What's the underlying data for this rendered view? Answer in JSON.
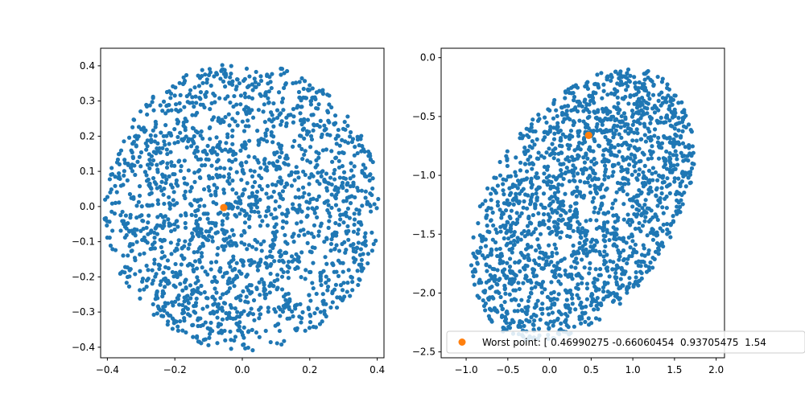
{
  "chart_data": [
    {
      "type": "scatter",
      "xlim": [
        -0.42,
        0.42
      ],
      "ylim": [
        -0.43,
        0.45
      ],
      "x_ticks": [
        -0.4,
        -0.2,
        0.0,
        0.2,
        0.4
      ],
      "x_tick_labels": [
        "−0.4",
        "−0.2",
        "0.0",
        "0.2",
        "0.4"
      ],
      "y_ticks": [
        -0.4,
        -0.3,
        -0.2,
        -0.1,
        0.0,
        0.1,
        0.2,
        0.3,
        0.4
      ],
      "y_tick_labels": [
        "−0.4",
        "−0.3",
        "−0.2",
        "−0.1",
        "0.0",
        "0.1",
        "0.2",
        "0.3",
        "0.4"
      ],
      "grid": false,
      "series": [
        {
          "color": "#1f77b4",
          "distribution": "uniform disk",
          "center": [
            0.0,
            0.0
          ],
          "radius": 0.41,
          "n_points": 1900,
          "seed": 7,
          "x": [],
          "y": []
        },
        {
          "color": "#ff7f0e",
          "x": [
            -0.055
          ],
          "y": [
            -0.003
          ]
        }
      ]
    },
    {
      "type": "scatter",
      "xlim": [
        -1.3,
        2.1
      ],
      "ylim": [
        -2.55,
        0.08
      ],
      "x_ticks": [
        -1.0,
        -0.5,
        0.0,
        0.5,
        1.0,
        1.5,
        2.0
      ],
      "x_tick_labels": [
        "−1.0",
        "−0.5",
        "0.0",
        "0.5",
        "1.0",
        "1.5",
        "2.0"
      ],
      "y_ticks": [
        -2.5,
        -2.0,
        -1.5,
        -1.0,
        -0.5,
        0.0
      ],
      "y_tick_labels": [
        "−2.5",
        "−2.0",
        "−1.5",
        "−1.0",
        "−0.5",
        "0.0"
      ],
      "grid": false,
      "legend": {
        "placement": "lower-right",
        "entries": [
          "Worst point: [ 0.46990275 -0.66060454  0.93705475  1.54"
        ]
      },
      "series": [
        {
          "color": "#1f77b4",
          "distribution": "tilted ellipse",
          "center": [
            0.4,
            -1.25
          ],
          "a": 1.5,
          "b": 0.95,
          "angle_deg": 35,
          "n_points": 1900,
          "seed": 13,
          "x": [],
          "y": []
        },
        {
          "name": "Worst point: [ 0.46990275 -0.66060454  0.93705475  1.54",
          "color": "#ff7f0e",
          "x": [
            0.4699
          ],
          "y": [
            -0.6606
          ]
        }
      ]
    }
  ]
}
